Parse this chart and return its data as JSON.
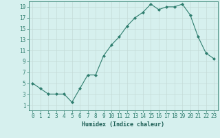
{
  "x": [
    0,
    1,
    2,
    3,
    4,
    5,
    6,
    7,
    8,
    9,
    10,
    11,
    12,
    13,
    14,
    15,
    16,
    17,
    18,
    19,
    20,
    21,
    22,
    23
  ],
  "y": [
    5,
    4,
    3,
    3,
    3,
    1.5,
    4,
    6.5,
    6.5,
    10,
    12,
    13.5,
    15.5,
    17,
    18,
    19.5,
    18.5,
    19,
    19,
    19.5,
    17.5,
    13.5,
    10.5,
    9.5
  ],
  "line_color": "#2e7d6e",
  "marker": "D",
  "marker_size": 2,
  "bg_color": "#d6f0ee",
  "grid_color": "#c4dbd8",
  "xlabel": "Humidex (Indice chaleur)",
  "xlim": [
    -0.5,
    23.5
  ],
  "ylim": [
    0,
    20
  ],
  "xticks": [
    0,
    1,
    2,
    3,
    4,
    5,
    6,
    7,
    8,
    9,
    10,
    11,
    12,
    13,
    14,
    15,
    16,
    17,
    18,
    19,
    20,
    21,
    22,
    23
  ],
  "yticks": [
    1,
    3,
    5,
    7,
    9,
    11,
    13,
    15,
    17,
    19
  ],
  "axis_color": "#2e7d6e",
  "tick_color": "#2e7d6e",
  "label_color": "#1a5c52",
  "label_fontsize": 6,
  "tick_fontsize": 5.5
}
